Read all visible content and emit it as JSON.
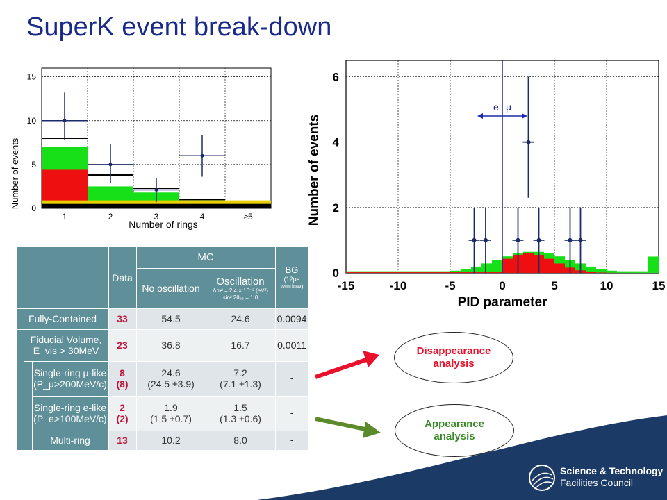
{
  "slide": {
    "title": "SuperK event break-down"
  },
  "chart_left": {
    "type": "bar",
    "ylabel": "Number of events",
    "xlabel": "Number of rings",
    "categories": [
      "1",
      "2",
      "3",
      "4",
      "≥5"
    ],
    "y_ticks": [
      "0",
      "5",
      "10",
      "15"
    ],
    "ylim": [
      0,
      16
    ],
    "mc_total": [
      8.0,
      3.8,
      2.3,
      1.0,
      0.3
    ],
    "green_top": [
      7.0,
      2.5,
      1.8,
      0.9,
      0.3
    ],
    "red_top": [
      4.4,
      0.5,
      0.4,
      0.1,
      0.0
    ],
    "data_points": [
      {
        "x": 1,
        "y": 10.0,
        "err_low": 2.2,
        "err_high": 3.2
      },
      {
        "x": 2,
        "y": 5.0,
        "err_low": 2.1,
        "err_high": 2.3
      },
      {
        "x": 3,
        "y": 2.1,
        "err_low": 1.4,
        "err_high": 1.3
      },
      {
        "x": 4,
        "y": 6.0,
        "err_low": 2.4,
        "err_high": 2.4
      }
    ],
    "colors": {
      "green": "#18e018",
      "red": "#ee1010",
      "yellow": "#e8d000",
      "black": "#000000"
    }
  },
  "chart_right": {
    "type": "bar",
    "ylabel": "Number of events",
    "xlabel": "PID parameter",
    "x_ticks": [
      "-15",
      "-10",
      "-5",
      "0",
      "5",
      "10",
      "15"
    ],
    "y_ticks": [
      "0",
      "2",
      "4",
      "6"
    ],
    "xlim": [
      -15,
      15
    ],
    "ylim": [
      0,
      6.5
    ],
    "annotation_e": "e",
    "annotation_mu": "μ",
    "cut_value": 0,
    "data_points": [
      {
        "x": -2.7,
        "y": 1.0
      },
      {
        "x": -1.6,
        "y": 1.0
      },
      {
        "x": 1.5,
        "y": 1.0
      },
      {
        "x": 2.5,
        "y": 4.0
      },
      {
        "x": 3.5,
        "y": 1.0
      },
      {
        "x": 6.5,
        "y": 1.0
      },
      {
        "x": 7.5,
        "y": 1.0
      }
    ],
    "colors": {
      "green": "#18e018",
      "red": "#ee1010",
      "blue": "#1a2aa8",
      "black": "#000000"
    }
  },
  "table": {
    "col_headers": {
      "data": "Data",
      "mc": "MC",
      "no_osc": "No oscillation",
      "osc": "Oscillation",
      "osc_params_1": "Δm² = 2.4 × 10⁻³ (eV²)",
      "osc_params_2": "sin² 2θ₂₃ = 1.0",
      "bg": "BG",
      "bg_sub": "(12μs window)"
    },
    "rows": [
      {
        "label": "Fully-Contained",
        "data": "33",
        "no_osc": "54.5",
        "osc": "24.6",
        "bg": "0.0094"
      },
      {
        "label": "Fiducial Volume, E_vis > 30MeV",
        "label_1": "Fiducial Volume,",
        "label_2": "E_vis > 30MeV",
        "data": "23",
        "no_osc": "36.8",
        "osc": "16.7",
        "bg": "0.0011"
      },
      {
        "label_1": "Single-ring μ-like",
        "label_2": "(P_μ>200MeV/c)",
        "data_1": "8",
        "data_2": "(8)",
        "no_osc_1": "24.6",
        "no_osc_2": "(24.5 ±3.9)",
        "osc_1": "7.2",
        "osc_2": "(7.1 ±1.3)",
        "bg": "-"
      },
      {
        "label_1": "Single-ring e-like",
        "label_2": "(P_e>100MeV/c)",
        "data_1": "2",
        "data_2": "(2)",
        "no_osc_1": "1.9",
        "no_osc_2": "(1.5 ±0.7)",
        "osc_1": "1.5",
        "osc_2": "(1.3 ±0.6)",
        "bg": "-"
      },
      {
        "label": "Multi-ring",
        "data": "13",
        "no_osc": "10.2",
        "osc": "8.0",
        "bg": "-"
      }
    ]
  },
  "bubbles": {
    "disappearance_1": "Disappearance",
    "disappearance_2": "analysis",
    "appearance_1": "Appearance",
    "appearance_2": "analysis"
  },
  "footer": {
    "logo_line_1": "Science & Technology",
    "logo_line_2": "Facilities Council",
    "band_color": "#1c3a66"
  }
}
